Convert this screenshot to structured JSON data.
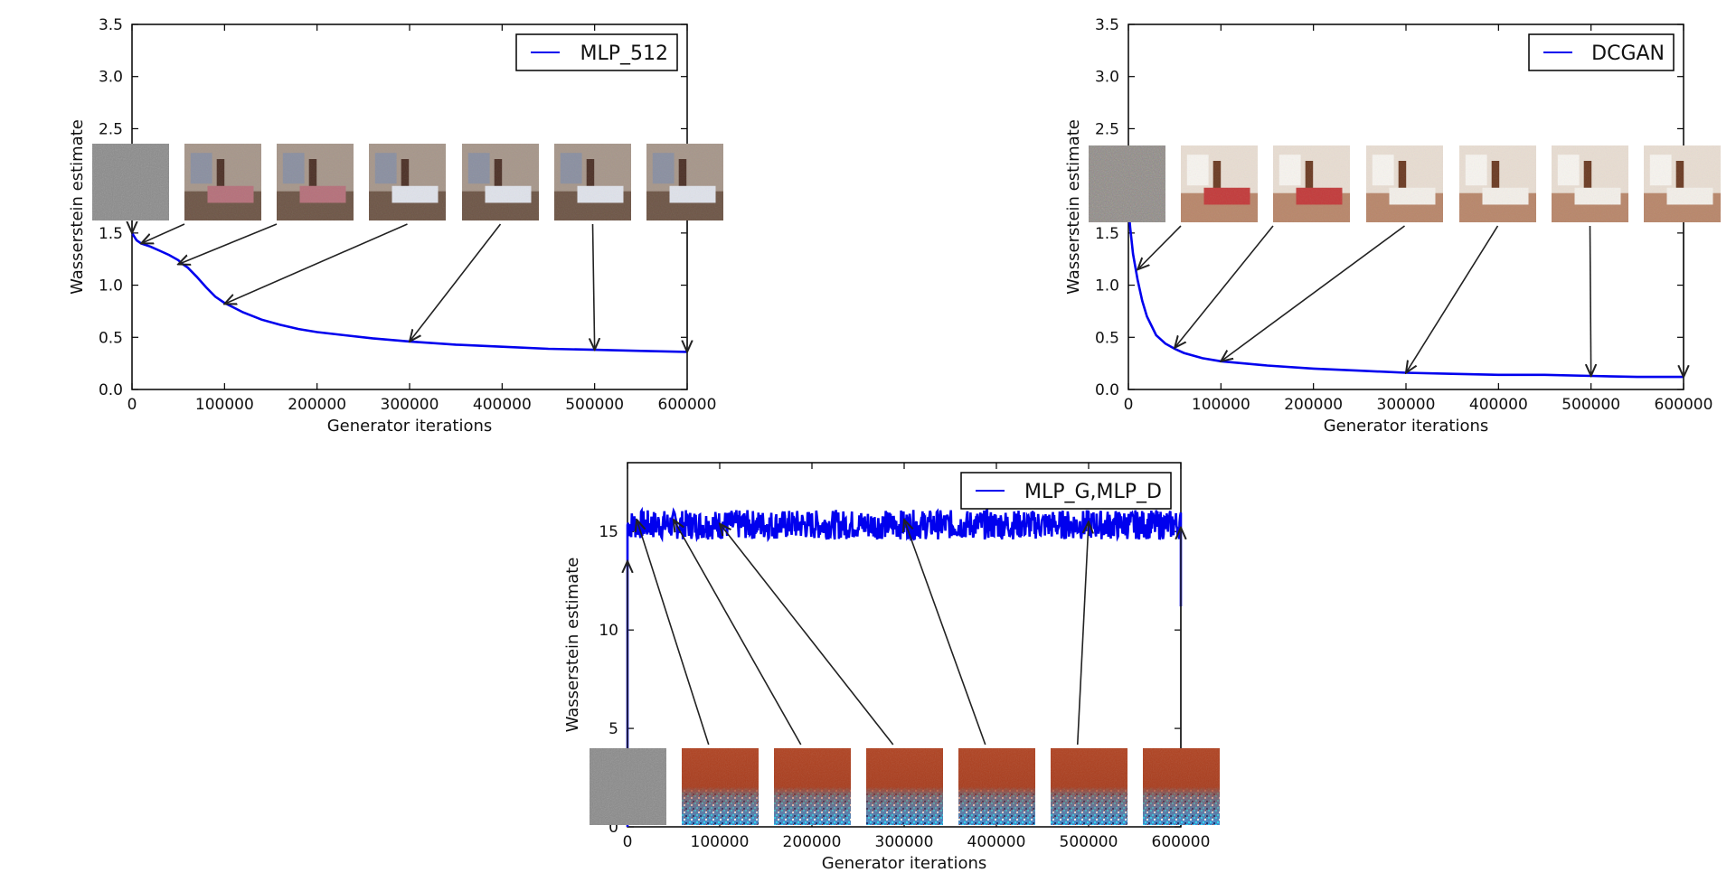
{
  "chart_data": [
    {
      "type": "line",
      "id": "p1",
      "xlabel": "Generator iterations",
      "ylabel": "Wasserstein estimate",
      "xlim": [
        0,
        600000
      ],
      "ylim": [
        0,
        3.5
      ],
      "xticks": [
        0,
        100000,
        200000,
        300000,
        400000,
        500000,
        600000
      ],
      "yticks": [
        0.0,
        0.5,
        1.0,
        1.5,
        2.0,
        2.5,
        3.0,
        3.5
      ],
      "ytick_labels": [
        "0.0",
        "0.5",
        "1.0",
        "1.5",
        "2.0",
        "2.5",
        "3.0",
        "3.5"
      ],
      "legend": "top-right",
      "grid": false,
      "series": [
        {
          "name": "MLP_512",
          "color": "#0000ee",
          "x": [
            0,
            5000,
            10000,
            20000,
            30000,
            40000,
            50000,
            55000,
            60000,
            70000,
            80000,
            90000,
            100000,
            120000,
            140000,
            160000,
            180000,
            200000,
            230000,
            260000,
            300000,
            350000,
            400000,
            450000,
            500000,
            550000,
            600000
          ],
          "y": [
            1.5,
            1.43,
            1.4,
            1.37,
            1.33,
            1.29,
            1.24,
            1.2,
            1.17,
            1.08,
            0.98,
            0.89,
            0.83,
            0.74,
            0.67,
            0.62,
            0.58,
            0.55,
            0.52,
            0.49,
            0.46,
            0.43,
            0.41,
            0.39,
            0.38,
            0.37,
            0.36
          ]
        }
      ],
      "samples": {
        "style": "bedroom",
        "at_x": [
          0,
          10000,
          50000,
          100000,
          300000,
          500000,
          600000
        ]
      }
    },
    {
      "type": "line",
      "id": "p2",
      "xlabel": "Generator iterations",
      "ylabel": "Wasserstein estimate",
      "xlim": [
        0,
        600000
      ],
      "ylim": [
        0,
        3.5
      ],
      "xticks": [
        0,
        100000,
        200000,
        300000,
        400000,
        500000,
        600000
      ],
      "yticks": [
        0.0,
        0.5,
        1.0,
        1.5,
        2.0,
        2.5,
        3.0,
        3.5
      ],
      "ytick_labels": [
        "0.0",
        "0.5",
        "1.0",
        "1.5",
        "2.0",
        "2.5",
        "3.0",
        "3.5"
      ],
      "legend": "top-right",
      "grid": false,
      "series": [
        {
          "name": "DCGAN",
          "color": "#0000ee",
          "x": [
            0,
            2000,
            5000,
            10000,
            15000,
            20000,
            30000,
            40000,
            50000,
            60000,
            80000,
            100000,
            150000,
            200000,
            250000,
            300000,
            350000,
            400000,
            450000,
            500000,
            550000,
            600000
          ],
          "y": [
            1.75,
            1.55,
            1.3,
            1.05,
            0.85,
            0.7,
            0.52,
            0.44,
            0.39,
            0.35,
            0.3,
            0.27,
            0.23,
            0.2,
            0.18,
            0.16,
            0.15,
            0.14,
            0.14,
            0.13,
            0.12,
            0.12
          ]
        }
      ],
      "samples": {
        "style": "bedroom",
        "at_x": [
          0,
          10000,
          50000,
          100000,
          300000,
          500000,
          600000
        ]
      }
    },
    {
      "type": "line",
      "id": "p3",
      "xlabel": "Generator iterations",
      "ylabel": "Wasserstein estimate",
      "xlim": [
        0,
        600000
      ],
      "ylim": [
        0,
        18.5
      ],
      "xticks": [
        0,
        100000,
        200000,
        300000,
        400000,
        500000,
        600000
      ],
      "yticks": [
        0,
        5,
        10,
        15
      ],
      "ytick_labels": [
        "0",
        "5",
        "10",
        "15"
      ],
      "legend": "top-right",
      "grid": false,
      "series": [
        {
          "name": "MLP_G,MLP_D",
          "color": "#0000ee",
          "mean": 15.3,
          "noise_band": [
            14.6,
            16.1
          ],
          "start_y": 0,
          "end_drop_y": 11.2
        }
      ],
      "samples": {
        "style": "noise",
        "at_x": [
          0,
          10000,
          50000,
          100000,
          300000,
          500000,
          600000
        ]
      }
    }
  ]
}
